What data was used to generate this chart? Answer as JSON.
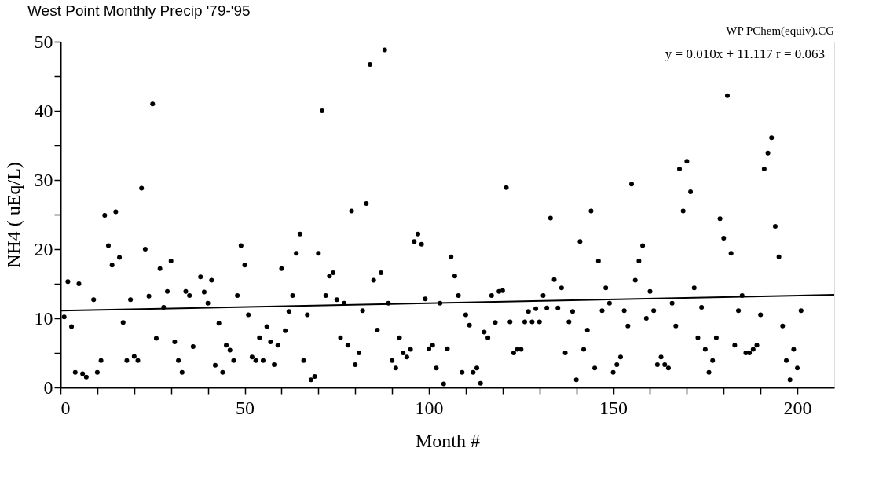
{
  "chart_data": {
    "type": "scatter",
    "title": "West Point Monthly Precip  '79-'95",
    "xlabel": "Month #",
    "ylabel": "NH4 ( uEq/L)",
    "annotations": [
      "WP PChem(equiv).CG",
      "y = 0.010x + 11.117   r = 0.063"
    ],
    "xlim": [
      0,
      210
    ],
    "ylim": [
      0,
      50
    ],
    "xticks": [
      0,
      {
        "value": 10,
        "label": null
      },
      {
        "value": 20,
        "label": null
      },
      {
        "value": 30,
        "label": null
      },
      {
        "value": 40,
        "label": null
      },
      50,
      {
        "value": 60,
        "label": null
      },
      {
        "value": 70,
        "label": null
      },
      {
        "value": 80,
        "label": null
      },
      {
        "value": 90,
        "label": null
      },
      100,
      {
        "value": 110,
        "label": null
      },
      {
        "value": 120,
        "label": null
      },
      {
        "value": 130,
        "label": null
      },
      {
        "value": 140,
        "label": null
      },
      150,
      {
        "value": 160,
        "label": null
      },
      {
        "value": 170,
        "label": null
      },
      {
        "value": 180,
        "label": null
      },
      {
        "value": 190,
        "label": null
      },
      200
    ],
    "yticks": [
      0,
      {
        "value": 5,
        "label": null
      },
      10,
      {
        "value": 15,
        "label": null
      },
      20,
      {
        "value": 25,
        "label": null
      },
      30,
      {
        "value": 35,
        "label": null
      },
      40,
      {
        "value": 45,
        "label": null
      },
      50
    ],
    "grid": false,
    "series": [
      {
        "marker": "circle",
        "color": "#000000",
        "x": [
          1,
          2,
          3,
          4,
          5,
          6,
          7,
          9,
          10,
          11,
          12,
          13,
          14,
          15,
          16,
          17,
          18,
          19,
          20,
          21,
          22,
          23,
          24,
          25,
          26,
          27,
          28,
          29,
          30,
          31,
          32,
          33,
          34,
          35,
          36,
          38,
          39,
          40,
          41,
          42,
          43,
          44,
          45,
          46,
          47,
          48,
          49,
          50,
          51,
          52,
          53,
          54,
          55,
          56,
          57,
          58,
          59,
          60,
          61,
          62,
          63,
          64,
          65,
          66,
          67,
          68,
          69,
          70,
          71,
          72,
          73,
          74,
          75,
          76,
          77,
          78,
          79,
          80,
          81,
          82,
          83,
          84,
          85,
          86,
          87,
          88,
          89,
          90,
          91,
          92,
          93,
          94,
          95,
          96,
          97,
          98,
          99,
          100,
          101,
          102,
          103,
          104,
          105,
          106,
          107,
          108,
          109,
          110,
          111,
          112,
          113,
          114,
          115,
          116,
          117,
          118,
          119,
          120,
          121,
          122,
          123,
          124,
          125,
          126,
          127,
          128,
          129,
          130,
          131,
          132,
          133,
          134,
          135,
          136,
          137,
          138,
          139,
          140,
          141,
          142,
          143,
          144,
          145,
          146,
          147,
          148,
          149,
          150,
          151,
          152,
          153,
          154,
          155,
          156,
          157,
          158,
          159,
          160,
          161,
          162,
          163,
          164,
          165,
          166,
          167,
          168,
          169,
          170,
          171,
          172,
          173,
          174,
          175,
          176,
          177,
          178,
          179,
          180,
          181,
          182,
          183,
          184,
          185,
          186,
          187,
          188,
          189,
          190,
          191,
          192,
          193,
          194,
          195,
          196,
          197,
          198,
          199,
          200,
          201
        ],
        "values": [
          10.2,
          15.3,
          8.8,
          2.2,
          15.0,
          2.0,
          1.5,
          12.7,
          2.2,
          3.9,
          24.9,
          20.5,
          17.7,
          25.4,
          18.8,
          9.4,
          3.9,
          12.7,
          4.5,
          3.9,
          28.8,
          20.0,
          13.2,
          41.0,
          7.1,
          17.2,
          11.6,
          13.9,
          18.3,
          6.6,
          3.9,
          2.2,
          13.9,
          13.3,
          5.9,
          16.0,
          13.8,
          12.2,
          15.5,
          3.2,
          9.3,
          2.2,
          6.1,
          5.4,
          3.9,
          13.3,
          20.5,
          17.7,
          10.5,
          4.4,
          3.9,
          7.2,
          3.9,
          8.8,
          6.6,
          3.3,
          6.1,
          17.2,
          8.2,
          11.0,
          13.3,
          19.4,
          22.2,
          3.9,
          10.5,
          1.1,
          1.6,
          19.4,
          40.0,
          13.3,
          16.1,
          16.6,
          12.7,
          7.2,
          12.2,
          6.1,
          25.5,
          3.3,
          5.0,
          11.1,
          26.6,
          46.7,
          15.5,
          8.3,
          16.6,
          48.8,
          12.2,
          3.9,
          2.8,
          7.2,
          5.0,
          4.4,
          5.5,
          21.1,
          22.2,
          20.7,
          12.8,
          5.6,
          6.1,
          2.8,
          12.2,
          0.5,
          5.6,
          18.9,
          16.1,
          13.3,
          2.2,
          10.5,
          9.0,
          2.2,
          2.8,
          0.6,
          8.0,
          7.2,
          13.3,
          9.4,
          13.9,
          14.0,
          28.9,
          9.5,
          5.0,
          5.5,
          5.5,
          9.5,
          11.0,
          9.5,
          11.4,
          9.5,
          13.3,
          11.5,
          24.5,
          15.6,
          11.5,
          14.4,
          5.0,
          9.5,
          11.0,
          1.1,
          21.1,
          5.5,
          8.3,
          25.5,
          2.8,
          18.3,
          11.1,
          14.4,
          12.2,
          2.2,
          3.3,
          4.4,
          11.1,
          8.9,
          29.4,
          15.5,
          18.3,
          20.5,
          10.0,
          13.9,
          11.1,
          3.3,
          4.4,
          3.3,
          2.8,
          12.2,
          8.9,
          31.6,
          25.5,
          32.7,
          28.3,
          14.4,
          7.2,
          11.6,
          5.5,
          2.2,
          3.9,
          7.2,
          24.4,
          21.6,
          42.2,
          19.4,
          6.1,
          11.1,
          13.3,
          5.0,
          5.0,
          5.5,
          6.1,
          10.5,
          31.6,
          33.9,
          36.1,
          23.3,
          18.9,
          8.9,
          3.9,
          1.1,
          5.5,
          2.8,
          11.1
        ]
      },
      {
        "type": "line",
        "marker": "none",
        "color": "#000000",
        "x": [
          0,
          210
        ],
        "values": [
          11.1,
          13.4
        ]
      }
    ]
  }
}
